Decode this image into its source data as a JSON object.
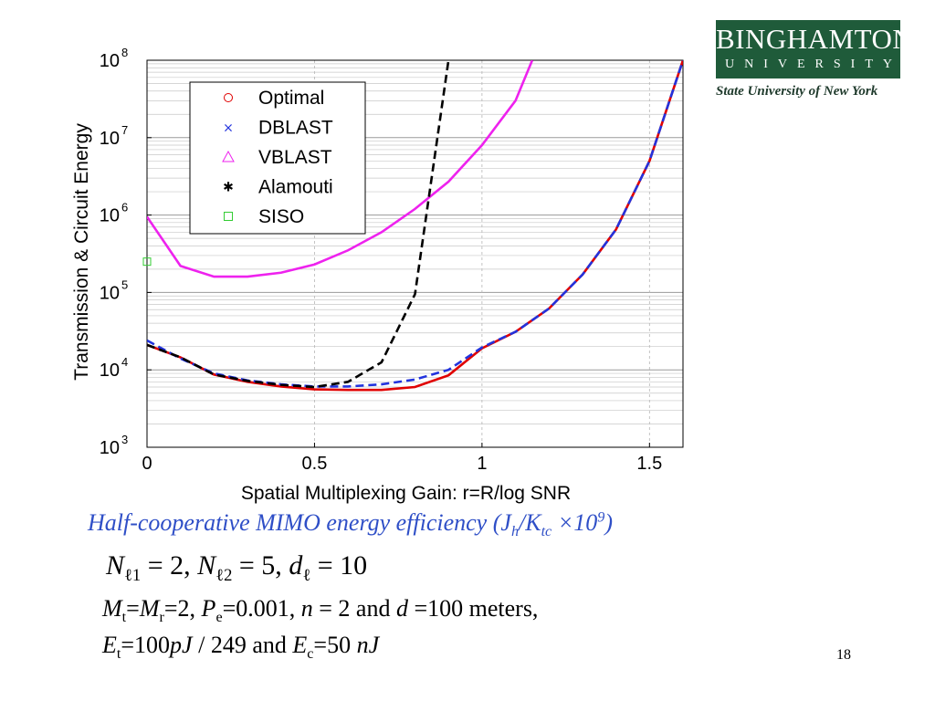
{
  "logo": {
    "name": "BINGHAMTON",
    "sub": "UNIVERSITY",
    "tagline": "State University of New York"
  },
  "caption": {
    "prefix": "Half-cooperative MIMO energy efficiency (J",
    "sub1": "h",
    "slash": "/K",
    "sub2": "tc",
    "times": " ×10",
    "sup": "9",
    "end": ")"
  },
  "formula": {
    "n": "N",
    "sub1": "ℓ1",
    "eq1": " = 2,   ",
    "sub2": "ℓ2",
    "eq2": " = 5,   ",
    "d": "d",
    "sub3": "ℓ",
    "eq3": " = 10"
  },
  "params": {
    "line1": {
      "m": "M",
      "t": "t",
      "eqm": "=",
      "m2": "M",
      "r": "r",
      "val": "=2, ",
      "p": "P",
      "e": "e",
      "pval": "=0.001, ",
      "n": "n",
      "nval": " = 2 and ",
      "d": "d",
      "dval": " =100 meters,"
    },
    "line2": {
      "e": "E",
      "t": "t",
      "val": "=100",
      "pj": "pJ",
      "rest": " / 249 and ",
      "e2": "E",
      "c": "c",
      "val2": "=50 ",
      "nj": "nJ"
    }
  },
  "page_number": "18",
  "chart_data": {
    "type": "line",
    "xlabel": "Spatial Multiplexing Gain: r=R/log SNR",
    "ylabel": "Transmission & Circuit Energy",
    "xlim": [
      0,
      1.6
    ],
    "ylim": [
      1000,
      100000000
    ],
    "yscale": "log",
    "xticks": [
      0,
      0.5,
      1,
      1.5
    ],
    "xtick_labels": [
      "0",
      "0.5",
      "1",
      "1.5"
    ],
    "yticks": [
      1000,
      10000,
      100000,
      1000000,
      10000000,
      100000000
    ],
    "ytick_labels": [
      [
        "10",
        "3"
      ],
      [
        "10",
        "4"
      ],
      [
        "10",
        "5"
      ],
      [
        "10",
        "6"
      ],
      [
        "10",
        "7"
      ],
      [
        "10",
        "8"
      ]
    ],
    "grid": true,
    "legend_position": "top-left",
    "series": [
      {
        "name": "Optimal",
        "color": "#e00000",
        "style": "solid",
        "marker": "circle",
        "x": [
          0,
          0.1,
          0.2,
          0.3,
          0.4,
          0.5,
          0.6,
          0.7,
          0.8,
          0.9,
          1.0,
          1.1,
          1.2,
          1.3,
          1.4,
          1.5,
          1.6
        ],
        "y": [
          21000,
          14500,
          8700,
          7000,
          6100,
          5600,
          5500,
          5500,
          6000,
          8500,
          19000,
          31000,
          62000,
          170000,
          650000,
          5000000,
          100000000
        ]
      },
      {
        "name": "DBLAST",
        "color": "#2233dd",
        "style": "dashed",
        "marker": "x",
        "x": [
          0,
          0.1,
          0.2,
          0.3,
          0.4,
          0.5,
          0.6,
          0.7,
          0.8,
          0.9,
          1.0,
          1.1,
          1.2,
          1.3,
          1.4,
          1.5,
          1.6
        ],
        "y": [
          24000,
          14000,
          9000,
          7300,
          6500,
          6100,
          6100,
          6500,
          7500,
          10000,
          19500,
          31000,
          62000,
          170000,
          650000,
          5000000,
          100000000
        ]
      },
      {
        "name": "VBLAST",
        "color": "#ee22ee",
        "style": "solid",
        "marker": "triangle",
        "x": [
          0,
          0.1,
          0.2,
          0.3,
          0.4,
          0.5,
          0.6,
          0.7,
          0.8,
          0.9,
          1.0,
          1.1,
          1.15
        ],
        "y": [
          950000,
          220000,
          160000,
          160000,
          180000,
          230000,
          350000,
          600000,
          1200000,
          2700000,
          8000000,
          30000000,
          100000000
        ]
      },
      {
        "name": "Alamouti",
        "color": "#000000",
        "style": "dashed",
        "marker": "star",
        "x": [
          0,
          0.1,
          0.2,
          0.3,
          0.4,
          0.5,
          0.6,
          0.7,
          0.8,
          0.9
        ],
        "y": [
          21000,
          14500,
          8700,
          7200,
          6400,
          6000,
          7000,
          12500,
          95000,
          100000000
        ]
      },
      {
        "name": "SISO",
        "color": "#33cc33",
        "style": "none",
        "marker": "square",
        "x": [
          0
        ],
        "y": [
          250000
        ]
      }
    ]
  }
}
